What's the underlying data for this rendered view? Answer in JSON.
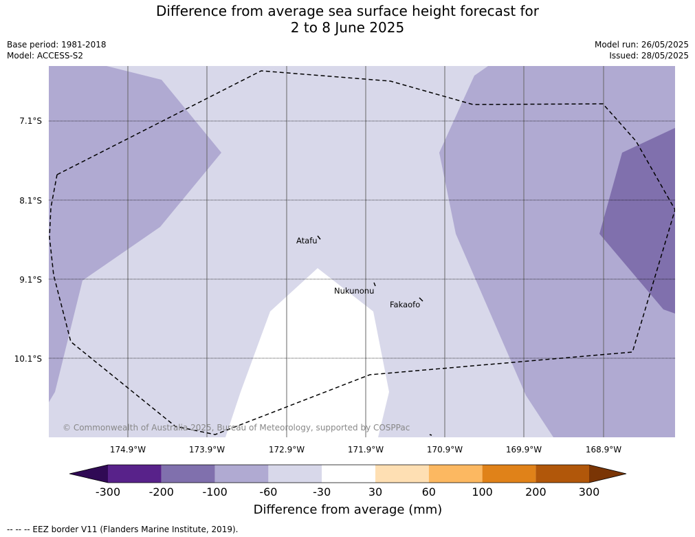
{
  "title_line1": "Difference from average sea surface height forecast for",
  "title_line2": "2 to 8 June 2025",
  "meta": {
    "base_period": "Base period: 1981-2018",
    "model": "Model: ACCESS-S2",
    "model_run": "Model run: 26/05/2025",
    "issued": "Issued: 28/05/2025"
  },
  "map": {
    "lat_labels": [
      "7.1°S",
      "8.1°S",
      "9.1°S",
      "10.1°S"
    ],
    "lon_labels": [
      "174.9°W",
      "173.9°W",
      "172.9°W",
      "171.9°W",
      "170.9°W",
      "169.9°W",
      "168.9°W"
    ],
    "places": [
      "Atafu",
      "Nukunonu",
      "Fakaofo"
    ],
    "copyright": "© Commonwealth of Australia 2025, Bureau of Meteorology, supported by COSPPac"
  },
  "colorbar": {
    "tick_labels": [
      "-300",
      "-200",
      "-100",
      "-60",
      "-30",
      "30",
      "60",
      "100",
      "200",
      "300"
    ],
    "colors": [
      "#300a55",
      "#58228a",
      "#8070ad",
      "#b0aad2",
      "#d8d8ea",
      "#ffffff",
      "#fedfb3",
      "#fcb861",
      "#e08219",
      "#b1570a",
      "#7a3505"
    ],
    "label": "Difference from average (mm)"
  },
  "footer": "--  --  -- EEZ border V11 (Flanders Marine Institute, 2019)."
}
